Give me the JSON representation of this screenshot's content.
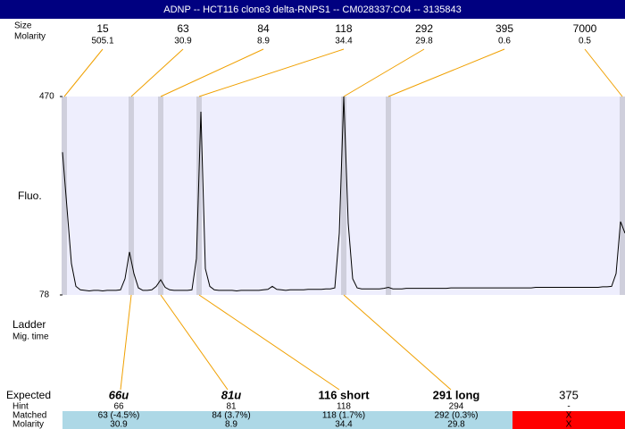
{
  "header": {
    "title": "ADNP -- HCT116 clone3 delta-RNPS1 -- CM028337:C04 -- 3135843"
  },
  "peaks": {
    "size_label": "Size",
    "molarity_label": "Molarity",
    "sizes": [
      15,
      63,
      84,
      118,
      292,
      395,
      7000
    ],
    "molarities": [
      505.1,
      30.9,
      8.9,
      34.4,
      29.8,
      0.6,
      0.5
    ]
  },
  "chart_data": {
    "type": "line",
    "y_label": "Fluo.",
    "color": "#000000",
    "ylim": [
      78,
      470
    ],
    "yticks": [
      78,
      470
    ],
    "values": [
      360,
      250,
      140,
      95,
      88,
      87,
      86,
      87,
      87,
      86,
      87,
      87,
      87,
      88,
      110,
      163,
      120,
      92,
      87,
      87,
      88,
      95,
      108,
      93,
      88,
      87,
      87,
      87,
      87,
      88,
      150,
      440,
      130,
      95,
      88,
      87,
      87,
      87,
      87,
      86,
      87,
      87,
      87,
      87,
      87,
      88,
      89,
      95,
      89,
      88,
      87,
      88,
      88,
      88,
      88,
      89,
      89,
      89,
      89,
      90,
      90,
      92,
      200,
      470,
      220,
      110,
      92,
      90,
      90,
      90,
      90,
      90,
      91,
      93,
      90,
      90,
      90,
      91,
      91,
      91,
      91,
      91,
      91,
      91,
      91,
      91,
      91,
      92,
      92,
      92,
      92,
      92,
      92,
      92,
      92,
      92,
      92,
      92,
      92,
      92,
      92,
      92,
      92,
      92,
      92,
      92,
      93,
      93,
      93,
      93,
      93,
      93,
      93,
      93,
      93,
      93,
      93,
      93,
      93,
      93,
      93,
      94,
      94,
      95,
      120,
      223,
      200
    ]
  },
  "ladder": {
    "label": "Ladder",
    "sublabel": "Mig. time"
  },
  "expected": {
    "row_labels": [
      "Expected",
      "Hint",
      "Matched",
      "Molarity"
    ],
    "expected": [
      "66u",
      "81u",
      "116 short",
      "291 long",
      "375"
    ],
    "hint": [
      "66",
      "81",
      "118",
      "294",
      "-"
    ],
    "matched": [
      "63 (-4.5%)",
      "84 (3.7%)",
      "118 (1.7%)",
      "292 (0.3%)",
      "X"
    ],
    "molarity": [
      "30.9",
      "8.9",
      "34.4",
      "29.8",
      "X"
    ]
  }
}
